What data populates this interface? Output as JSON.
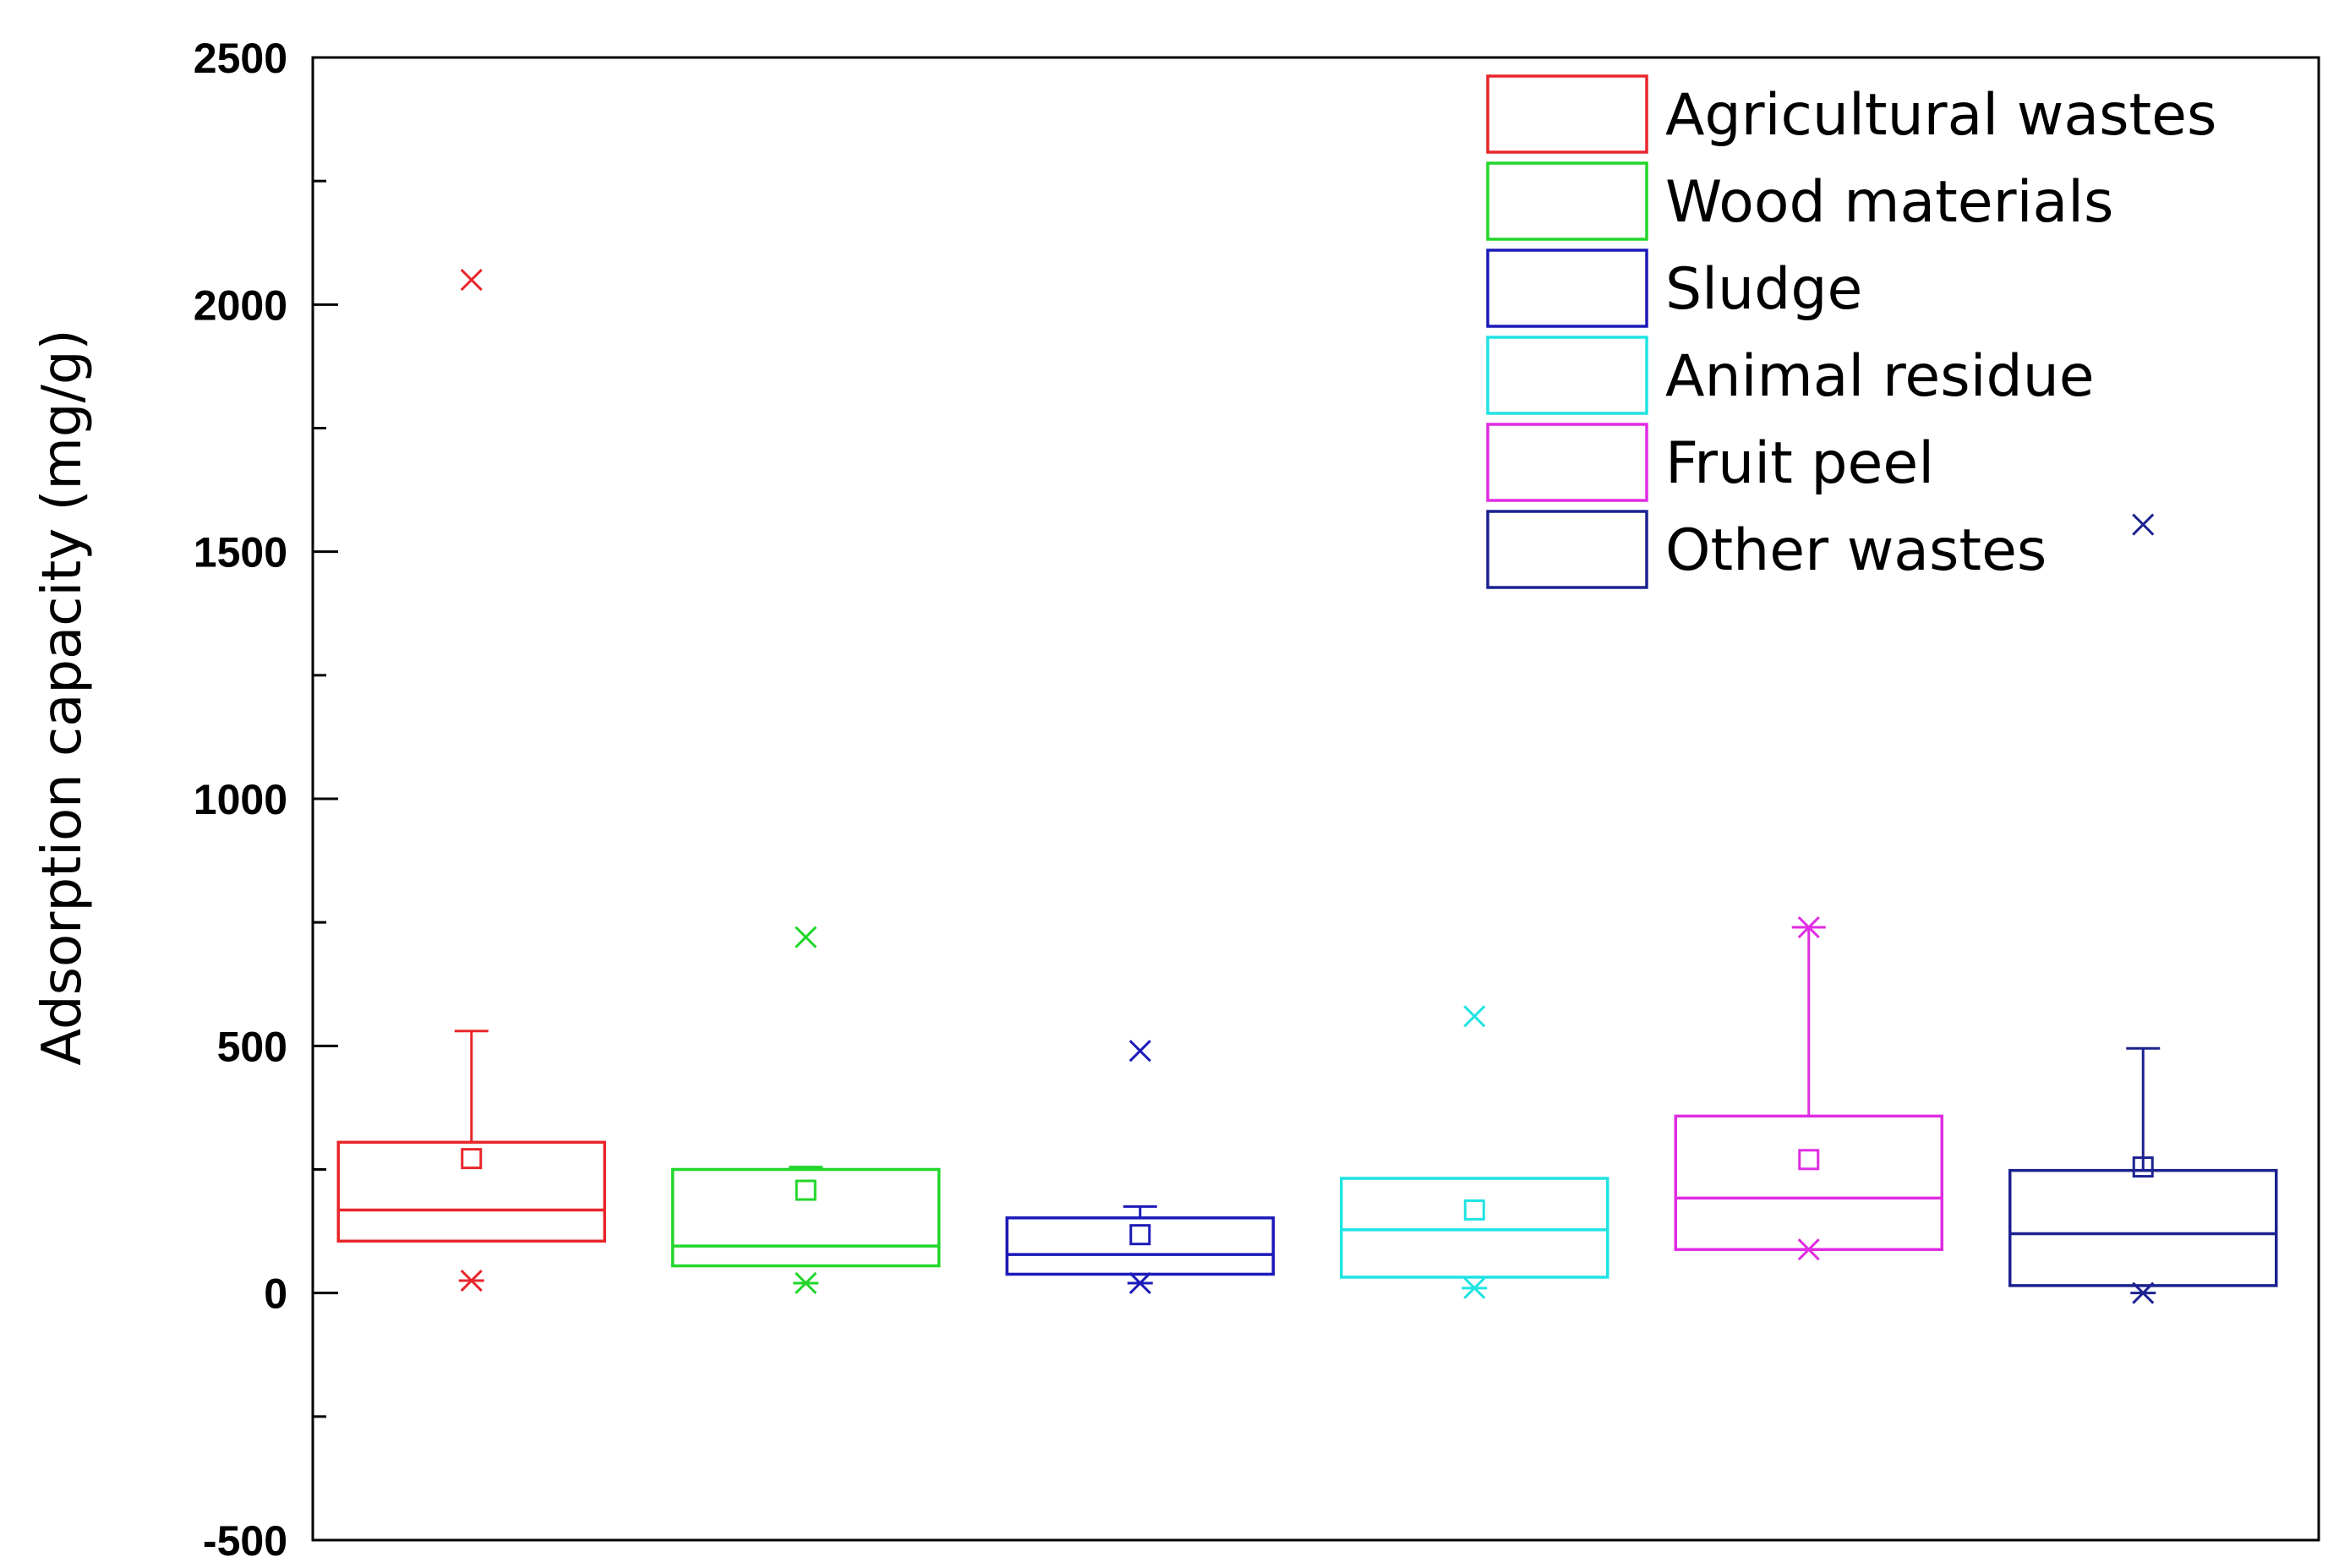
{
  "chart_data": {
    "type": "box",
    "title": "",
    "xlabel": "",
    "ylabel": "Adsorption capacity (mg/g)",
    "ylim": [
      -500,
      2500
    ],
    "yticks": [
      -500,
      0,
      500,
      1000,
      1500,
      2000,
      2500
    ],
    "ytick_labels": [
      "-500",
      "0",
      "500",
      "1000",
      "1500",
      "2000",
      "2500"
    ],
    "minor_tick_step": 250,
    "legend_position": "top-right",
    "series": [
      {
        "name": "Agricultural wastes",
        "color": "#e8262b",
        "q1": 105,
        "median": 168,
        "q3": 305,
        "whisker_low": 105,
        "whisker_high": 530,
        "mean": 272,
        "min_marker": 25,
        "max_marker": 2050,
        "extra_points": []
      },
      {
        "name": "Wood materials",
        "color": "#22d62a",
        "q1": 55,
        "median": 95,
        "q3": 250,
        "whisker_low": 55,
        "whisker_high": 255,
        "mean": 208,
        "min_marker": 20,
        "max_marker": 720,
        "extra_points": []
      },
      {
        "name": "Sludge",
        "color": "#1c1ab8",
        "q1": 38,
        "median": 78,
        "q3": 152,
        "whisker_low": 38,
        "whisker_high": 175,
        "mean": 118,
        "min_marker": 20,
        "max_marker": 490,
        "extra_points": []
      },
      {
        "name": "Animal residue",
        "color": "#20e3e3",
        "q1": 32,
        "median": 128,
        "q3": 232,
        "whisker_low": 32,
        "whisker_high": 232,
        "mean": 168,
        "min_marker": 10,
        "max_marker": 560,
        "extra_points": []
      },
      {
        "name": "Fruit peel",
        "color": "#e02ce3",
        "q1": 88,
        "median": 192,
        "q3": 358,
        "whisker_low": 88,
        "whisker_high": 740,
        "mean": 270,
        "min_marker": 88,
        "max_marker": 740,
        "extra_points": []
      },
      {
        "name": "Other wastes",
        "color": "#1c2290",
        "q1": 15,
        "median": 120,
        "q3": 248,
        "whisker_low": 15,
        "whisker_high": 495,
        "mean": 255,
        "min_marker": 0,
        "max_marker": 1555,
        "extra_points": []
      }
    ]
  }
}
